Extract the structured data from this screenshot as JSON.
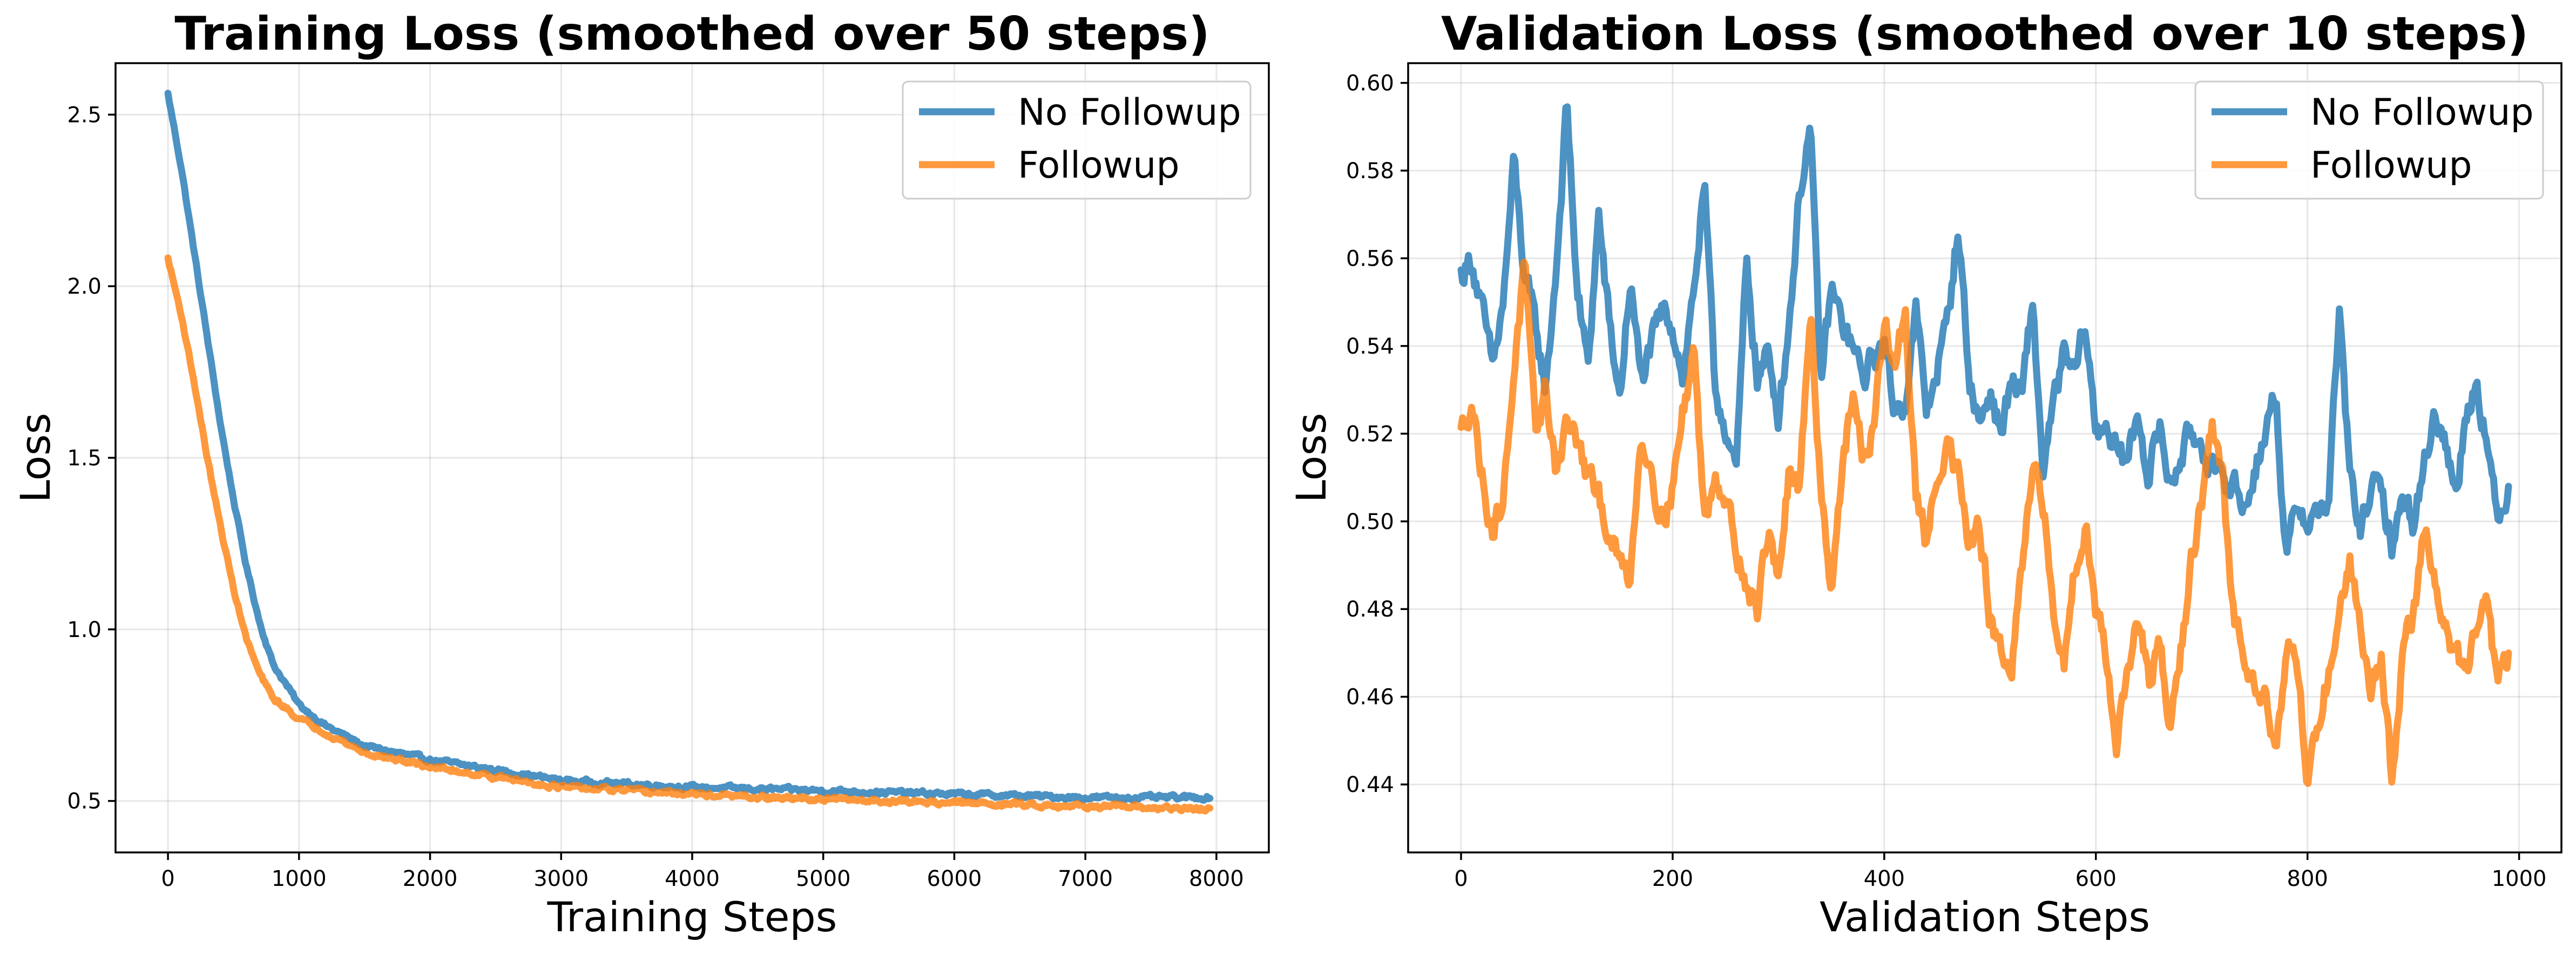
{
  "colors": {
    "no_followup": "#1f77b4",
    "followup": "#ff7f0e"
  },
  "chart_data": [
    {
      "type": "line",
      "title": "Training Loss (smoothed over 50 steps)",
      "xlabel": "Training Steps",
      "ylabel": "Loss",
      "xlim": [
        -400,
        8400
      ],
      "ylim": [
        0.35,
        2.65
      ],
      "xticks": [
        0,
        1000,
        2000,
        3000,
        4000,
        5000,
        6000,
        7000,
        8000
      ],
      "yticks": [
        0.5,
        1.0,
        1.5,
        2.0,
        2.5
      ],
      "grid": true,
      "legend_position": "top-right",
      "noise": 0.012,
      "series": [
        {
          "name": "No Followup",
          "color_key": "no_followup",
          "x": [
            0,
            100,
            200,
            300,
            400,
            500,
            600,
            700,
            800,
            1000,
            1200,
            1500,
            2000,
            2500,
            3000,
            3500,
            4000,
            4500,
            5000,
            5500,
            6000,
            6500,
            7000,
            7500,
            7950
          ],
          "values": [
            2.56,
            2.35,
            2.1,
            1.85,
            1.6,
            1.38,
            1.18,
            1.02,
            0.9,
            0.78,
            0.72,
            0.66,
            0.62,
            0.59,
            0.56,
            0.55,
            0.54,
            0.535,
            0.53,
            0.525,
            0.52,
            0.515,
            0.51,
            0.51,
            0.51
          ]
        },
        {
          "name": "Followup",
          "color_key": "followup",
          "x": [
            0,
            100,
            200,
            300,
            400,
            500,
            600,
            700,
            800,
            1000,
            1200,
            1500,
            2000,
            2500,
            3000,
            3500,
            4000,
            4500,
            5000,
            5500,
            6000,
            6500,
            7000,
            7500,
            7950
          ],
          "values": [
            2.08,
            1.92,
            1.72,
            1.5,
            1.3,
            1.12,
            0.97,
            0.87,
            0.8,
            0.74,
            0.7,
            0.64,
            0.6,
            0.57,
            0.54,
            0.53,
            0.52,
            0.51,
            0.505,
            0.5,
            0.495,
            0.49,
            0.485,
            0.48,
            0.475
          ]
        }
      ]
    },
    {
      "type": "line",
      "title": "Validation Loss (smoothed over 10 steps)",
      "xlabel": "Validation Steps",
      "ylabel": "Loss",
      "xlim": [
        -50,
        1040
      ],
      "ylim": [
        0.4245,
        0.6045
      ],
      "xticks": [
        0,
        200,
        400,
        600,
        800,
        1000
      ],
      "yticks": [
        0.44,
        0.46,
        0.48,
        0.5,
        0.52,
        0.54,
        0.56,
        0.58,
        0.6
      ],
      "ytick_decimals": 2,
      "grid": true,
      "legend_position": "top-right",
      "noise": 0.006,
      "series": [
        {
          "name": "No Followup",
          "color_key": "no_followup",
          "x": [
            0,
            10,
            20,
            30,
            40,
            50,
            60,
            70,
            80,
            90,
            100,
            110,
            120,
            130,
            140,
            150,
            160,
            170,
            180,
            190,
            200,
            210,
            220,
            230,
            240,
            250,
            260,
            270,
            280,
            290,
            300,
            310,
            320,
            330,
            340,
            350,
            360,
            370,
            380,
            390,
            400,
            410,
            420,
            430,
            440,
            450,
            460,
            470,
            480,
            490,
            500,
            510,
            520,
            530,
            540,
            550,
            560,
            570,
            580,
            590,
            600,
            610,
            620,
            630,
            640,
            650,
            660,
            670,
            680,
            690,
            700,
            710,
            720,
            730,
            740,
            750,
            760,
            770,
            780,
            790,
            800,
            810,
            820,
            830,
            840,
            850,
            860,
            870,
            880,
            890,
            900,
            910,
            920,
            930,
            940,
            950,
            960,
            970,
            980,
            990
          ],
          "values": [
            0.556,
            0.56,
            0.548,
            0.535,
            0.55,
            0.582,
            0.556,
            0.545,
            0.53,
            0.558,
            0.595,
            0.552,
            0.535,
            0.57,
            0.545,
            0.528,
            0.555,
            0.532,
            0.54,
            0.548,
            0.545,
            0.533,
            0.553,
            0.576,
            0.53,
            0.522,
            0.51,
            0.56,
            0.532,
            0.538,
            0.525,
            0.545,
            0.575,
            0.59,
            0.532,
            0.553,
            0.545,
            0.54,
            0.532,
            0.538,
            0.54,
            0.525,
            0.528,
            0.548,
            0.525,
            0.535,
            0.546,
            0.568,
            0.533,
            0.522,
            0.53,
            0.52,
            0.532,
            0.528,
            0.55,
            0.512,
            0.526,
            0.538,
            0.533,
            0.545,
            0.52,
            0.523,
            0.515,
            0.514,
            0.525,
            0.51,
            0.522,
            0.508,
            0.515,
            0.52,
            0.518,
            0.512,
            0.508,
            0.51,
            0.502,
            0.512,
            0.52,
            0.53,
            0.49,
            0.505,
            0.5,
            0.502,
            0.505,
            0.548,
            0.51,
            0.498,
            0.508,
            0.506,
            0.495,
            0.505,
            0.5,
            0.512,
            0.526,
            0.518,
            0.506,
            0.525,
            0.532,
            0.518,
            0.498,
            0.509
          ]
        },
        {
          "name": "Followup",
          "color_key": "followup",
          "x": [
            0,
            10,
            20,
            30,
            40,
            50,
            60,
            70,
            80,
            90,
            100,
            110,
            120,
            130,
            140,
            150,
            160,
            170,
            180,
            190,
            200,
            210,
            220,
            230,
            240,
            250,
            260,
            270,
            280,
            290,
            300,
            310,
            320,
            330,
            340,
            350,
            360,
            370,
            380,
            390,
            400,
            410,
            420,
            430,
            440,
            450,
            460,
            470,
            480,
            490,
            500,
            510,
            520,
            530,
            540,
            550,
            560,
            570,
            580,
            590,
            600,
            610,
            620,
            630,
            640,
            650,
            660,
            670,
            680,
            690,
            700,
            710,
            720,
            730,
            740,
            750,
            760,
            770,
            780,
            790,
            800,
            810,
            820,
            830,
            840,
            850,
            860,
            870,
            880,
            890,
            900,
            910,
            920,
            930,
            940,
            950,
            960,
            970,
            980,
            990
          ],
          "values": [
            0.52,
            0.528,
            0.51,
            0.498,
            0.505,
            0.535,
            0.558,
            0.52,
            0.53,
            0.512,
            0.523,
            0.518,
            0.51,
            0.505,
            0.498,
            0.49,
            0.488,
            0.52,
            0.512,
            0.5,
            0.508,
            0.525,
            0.54,
            0.5,
            0.512,
            0.505,
            0.495,
            0.485,
            0.48,
            0.498,
            0.488,
            0.51,
            0.505,
            0.55,
            0.508,
            0.485,
            0.512,
            0.528,
            0.515,
            0.52,
            0.545,
            0.535,
            0.548,
            0.505,
            0.495,
            0.51,
            0.52,
            0.51,
            0.495,
            0.498,
            0.478,
            0.47,
            0.465,
            0.488,
            0.51,
            0.505,
            0.478,
            0.468,
            0.49,
            0.5,
            0.48,
            0.47,
            0.45,
            0.465,
            0.478,
            0.462,
            0.472,
            0.452,
            0.47,
            0.49,
            0.505,
            0.52,
            0.51,
            0.478,
            0.47,
            0.465,
            0.46,
            0.448,
            0.472,
            0.468,
            0.44,
            0.455,
            0.465,
            0.48,
            0.49,
            0.478,
            0.462,
            0.47,
            0.44,
            0.47,
            0.478,
            0.498,
            0.488,
            0.475,
            0.47,
            0.466,
            0.475,
            0.48,
            0.462,
            0.47
          ]
        }
      ]
    }
  ]
}
